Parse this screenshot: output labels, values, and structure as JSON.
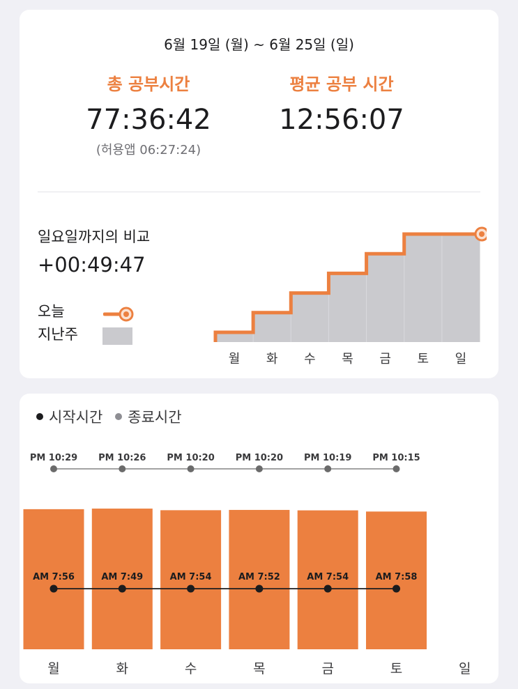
{
  "summary": {
    "date_range": "6월 19일 (월) ~ 6월 25일 (일)",
    "total_label": "총 공부시간",
    "total_value": "77:36:42",
    "allowed_app": "(허용앱 06:27:24)",
    "avg_label": "평균 공부 시간",
    "avg_value": "12:56:07"
  },
  "comparison": {
    "title": "일요일까지의 비교",
    "value": "+00:49:47",
    "legend_today": "오늘",
    "legend_last_week": "지난주"
  },
  "colors": {
    "accent": "#ec8040",
    "last_week_fill": "#cacace",
    "line": "#1c1c1e",
    "end_dot": "#6b6b6b"
  },
  "chart_data": [
    {
      "type": "area",
      "categories": [
        "월",
        "화",
        "수",
        "목",
        "금",
        "토",
        "일"
      ],
      "series": [
        {
          "name": "오늘",
          "style": "step-line",
          "values": [
            1,
            2,
            3,
            4,
            5,
            6,
            6
          ]
        },
        {
          "name": "지난주",
          "style": "step-area",
          "values": [
            1,
            2,
            3,
            4,
            5,
            6,
            6
          ]
        }
      ],
      "units": "relative cumulative study time",
      "grid": false
    },
    {
      "type": "bar",
      "legend": [
        "시작시간",
        "종료시간"
      ],
      "categories": [
        "월",
        "화",
        "수",
        "목",
        "금",
        "토",
        "일"
      ],
      "start_times": [
        "AM 7:56",
        "AM 7:49",
        "AM 7:54",
        "AM 7:52",
        "AM 7:54",
        "AM 7:58",
        null
      ],
      "end_times": [
        "PM 10:29",
        "PM 10:26",
        "PM 10:20",
        "PM 10:20",
        "PM 10:19",
        "PM 10:15",
        null
      ],
      "bar_values_minutes": [
        933,
        937,
        926,
        928,
        925,
        917,
        null
      ],
      "bar_color": "#ec8040",
      "grid": false
    }
  ]
}
